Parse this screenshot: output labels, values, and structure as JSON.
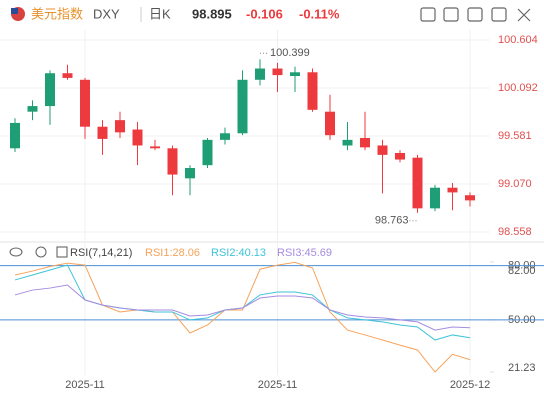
{
  "header": {
    "name": "美元指数",
    "symbol": "DXY",
    "period": "日K",
    "price": "98.895",
    "change": "-0.106",
    "change_pct": "-0.11%"
  },
  "chart_data": [
    {
      "type": "candlestick",
      "categories": [
        null,
        null,
        null,
        null,
        "2025-11",
        null,
        null,
        null,
        null,
        null,
        null,
        null,
        null,
        null,
        null,
        "2025-11",
        null,
        null,
        null,
        null,
        null,
        null,
        null,
        null,
        null,
        null,
        "2025-12"
      ],
      "open": [
        99.45,
        99.84,
        99.9,
        100.25,
        100.18,
        99.68,
        99.75,
        99.65,
        99.47,
        99.45,
        99.13,
        99.27,
        99.54,
        99.61,
        100.18,
        100.3,
        100.22,
        100.26,
        99.84,
        99.48,
        99.56,
        99.48,
        99.4,
        99.35,
        98.81,
        99.03,
        98.95
      ],
      "high": [
        99.77,
        99.96,
        100.28,
        100.34,
        100.2,
        99.75,
        99.84,
        99.73,
        99.54,
        99.48,
        99.27,
        99.56,
        99.67,
        100.28,
        100.399,
        100.36,
        100.32,
        100.3,
        100.02,
        99.73,
        99.84,
        99.54,
        99.43,
        99.38,
        99.06,
        99.08,
        98.98
      ],
      "low": [
        99.41,
        99.75,
        99.7,
        100.18,
        99.55,
        99.38,
        99.56,
        99.27,
        99.43,
        98.95,
        98.95,
        99.24,
        99.49,
        99.59,
        100.12,
        100.05,
        100.05,
        99.84,
        99.54,
        99.43,
        99.43,
        98.97,
        99.3,
        98.763,
        98.78,
        98.79,
        98.83
      ],
      "close": [
        99.72,
        99.9,
        100.25,
        100.2,
        99.68,
        99.55,
        99.62,
        99.48,
        99.45,
        99.17,
        99.24,
        99.54,
        99.61,
        100.18,
        100.3,
        100.23,
        100.26,
        99.86,
        99.59,
        99.54,
        99.46,
        99.38,
        99.33,
        98.81,
        99.03,
        98.98,
        98.895
      ],
      "up_color": "#1f9e75",
      "down_color": "#ec3a3f",
      "ylim": [
        98.558,
        100.604
      ],
      "yticks": [
        100.604,
        100.092,
        99.581,
        {
          "value": 99.07,
          "label": "99.070"
        },
        98.558
      ],
      "annotations": [
        "100.399",
        "98.763"
      ],
      "grid": true
    },
    {
      "type": "line",
      "title": "RSI(7,14,21)",
      "series": [
        {
          "name": "RSI1:28.06",
          "color": "#f5a35c",
          "values": [
            74.8,
            77.0,
            79.5,
            81.4,
            80.3,
            58.2,
            54.4,
            55.5,
            54.4,
            54.4,
            42.8,
            47.2,
            55.5,
            55.5,
            78.0,
            80.3,
            81.8,
            78.7,
            54.4,
            44.4,
            41.7,
            38.9,
            36.1,
            33.4,
            21.23,
            31.0,
            28.06
          ]
        },
        {
          "name": "RSI2:40.13",
          "color": "#3ec3d8",
          "values": [
            72.1,
            74.8,
            77.6,
            80.3,
            61.0,
            58.2,
            56.6,
            55.5,
            54.4,
            54.4,
            50.0,
            51.1,
            55.5,
            56.6,
            63.8,
            65.4,
            65.4,
            63.8,
            55.5,
            51.1,
            50.0,
            48.9,
            47.2,
            46.1,
            38.9,
            41.7,
            40.13
          ]
        },
        {
          "name": "RSI3:45.69",
          "color": "#a58ce0",
          "values": [
            63.8,
            66.5,
            67.6,
            69.3,
            61.0,
            58.2,
            56.6,
            55.5,
            55.5,
            55.5,
            52.2,
            52.7,
            55.5,
            56.6,
            62.1,
            63.2,
            63.2,
            62.1,
            55.5,
            52.7,
            51.6,
            51.1,
            50.0,
            48.9,
            44.4,
            46.1,
            45.69
          ]
        }
      ],
      "ylim": [
        21.23,
        82
      ],
      "yticks": [
        {
          "value": 82,
          "label": "82.00"
        },
        {
          "value": 80,
          "label": "80.00"
        },
        {
          "value": 50,
          "label": "50.00"
        },
        21.23
      ],
      "reference_lines": [
        80,
        50
      ],
      "reference_color": "#4a8fd6"
    }
  ]
}
